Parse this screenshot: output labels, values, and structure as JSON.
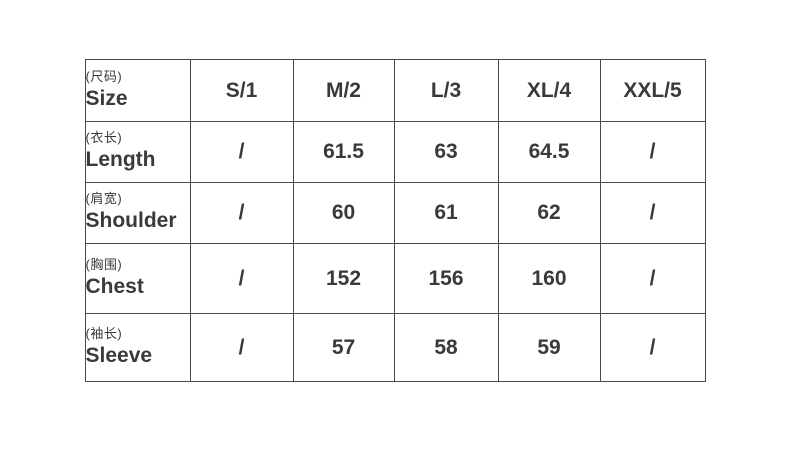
{
  "chart_data": {
    "type": "table",
    "header": {
      "label_cn": "(尺码)",
      "label_en": "Size"
    },
    "columns": [
      "S/1",
      "M/2",
      "L/3",
      "XL/4",
      "XXL/5"
    ],
    "rows": [
      {
        "label_cn": "(衣长)",
        "label_en": "Length",
        "values": [
          "/",
          "61.5",
          "63",
          "64.5",
          "/"
        ]
      },
      {
        "label_cn": "(肩宽)",
        "label_en": "Shoulder",
        "values": [
          "/",
          "60",
          "61",
          "62",
          "/"
        ]
      },
      {
        "label_cn": "(胸围)",
        "label_en": "Chest",
        "values": [
          "/",
          "152",
          "156",
          "160",
          "/"
        ]
      },
      {
        "label_cn": "(袖长)",
        "label_en": "Sleeve",
        "values": [
          "/",
          "57",
          "58",
          "59",
          "/"
        ]
      }
    ]
  },
  "colors": {
    "border": "#4a4a4a",
    "text": "#3a3a3a",
    "background": "#ffffff"
  }
}
